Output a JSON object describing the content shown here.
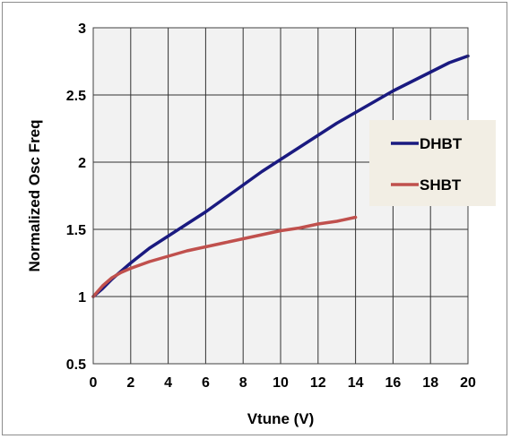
{
  "chart_data": {
    "type": "line",
    "title": "",
    "xlabel": "Vtune (V)",
    "ylabel": "Normalized Osc Freq",
    "xlim": [
      0,
      20
    ],
    "ylim": [
      0.5,
      3
    ],
    "x_ticks": [
      "0",
      "2",
      "4",
      "6",
      "8",
      "10",
      "12",
      "14",
      "16",
      "18",
      "20"
    ],
    "y_ticks": [
      "0.5",
      "1",
      "1.5",
      "2",
      "2.5",
      "3"
    ],
    "grid": true,
    "legend_position": "right",
    "series": [
      {
        "name": "DHBT",
        "color": "#1a1a80",
        "x": [
          0,
          0.5,
          1,
          2,
          3,
          4,
          5,
          6,
          7,
          8,
          9,
          10,
          11,
          12,
          13,
          14,
          15,
          16,
          17,
          18,
          19,
          20
        ],
        "y": [
          1.0,
          1.06,
          1.13,
          1.25,
          1.36,
          1.45,
          1.54,
          1.63,
          1.73,
          1.83,
          1.93,
          2.02,
          2.11,
          2.2,
          2.29,
          2.37,
          2.45,
          2.53,
          2.6,
          2.67,
          2.74,
          2.79
        ]
      },
      {
        "name": "SHBT",
        "color": "#c0504d",
        "x": [
          0,
          0.5,
          1,
          1.5,
          2,
          3,
          4,
          5,
          6,
          7,
          8,
          9,
          10,
          11,
          12,
          13,
          14
        ],
        "y": [
          1.0,
          1.08,
          1.14,
          1.18,
          1.21,
          1.26,
          1.3,
          1.34,
          1.37,
          1.4,
          1.43,
          1.46,
          1.49,
          1.51,
          1.54,
          1.56,
          1.59
        ]
      }
    ]
  }
}
